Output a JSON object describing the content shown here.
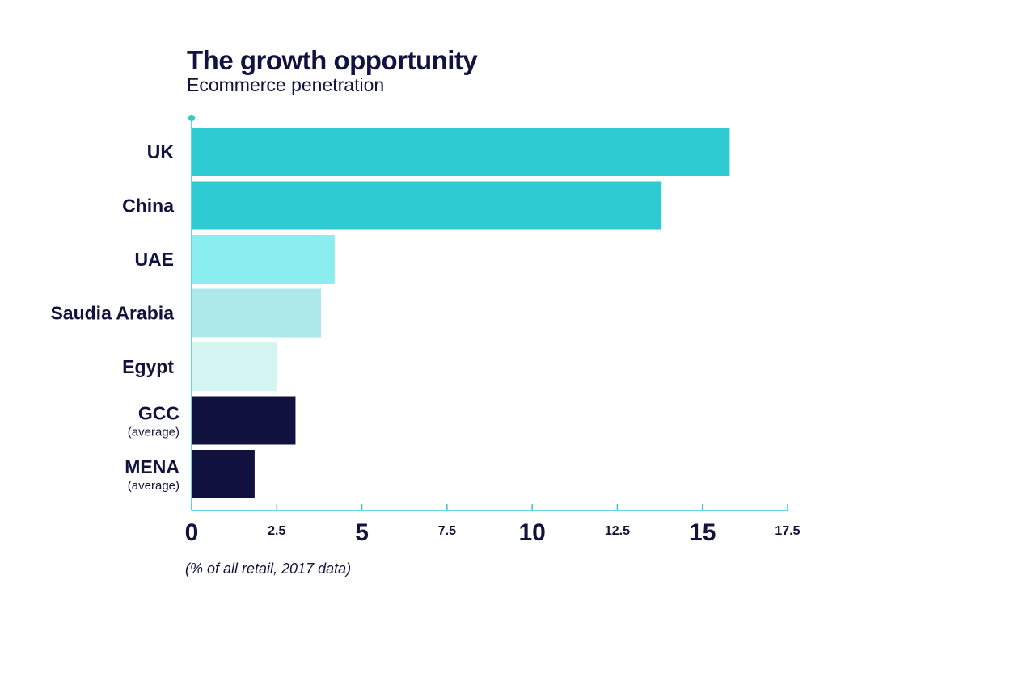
{
  "chart_data": {
    "type": "bar",
    "orientation": "horizontal",
    "title": "The growth opportunity",
    "subtitle": "Ecommerce penetration",
    "footnote": "(% of all retail, 2017 data)",
    "categories": [
      {
        "label": "UK",
        "sublabel": ""
      },
      {
        "label": "China",
        "sublabel": ""
      },
      {
        "label": "UAE",
        "sublabel": ""
      },
      {
        "label": "Saudia Arabia",
        "sublabel": ""
      },
      {
        "label": "Egypt",
        "sublabel": ""
      },
      {
        "label": "GCC",
        "sublabel": "(average)"
      },
      {
        "label": "MENA",
        "sublabel": "(average)"
      }
    ],
    "values": [
      15.8,
      13.8,
      4.2,
      3.8,
      2.5,
      3.05,
      1.85
    ],
    "colors": [
      "#2ecbd3",
      "#2ecbd3",
      "#8aeef0",
      "#aee9ea",
      "#d5f5f3",
      "#11113f",
      "#11113f"
    ],
    "xlim": [
      0,
      17.5
    ],
    "xticks": [
      {
        "value": 0,
        "label": "0",
        "major": true
      },
      {
        "value": 2.5,
        "label": "2.5",
        "major": false
      },
      {
        "value": 5,
        "label": "5",
        "major": true
      },
      {
        "value": 7.5,
        "label": "7.5",
        "major": false
      },
      {
        "value": 10,
        "label": "10",
        "major": true
      },
      {
        "value": 12.5,
        "label": "12.5",
        "major": false
      },
      {
        "value": 15,
        "label": "15",
        "major": true
      },
      {
        "value": 17.5,
        "label": "17.5",
        "major": false
      }
    ],
    "axis_color": "#2ecbd3",
    "grid": false,
    "legend": "none"
  }
}
